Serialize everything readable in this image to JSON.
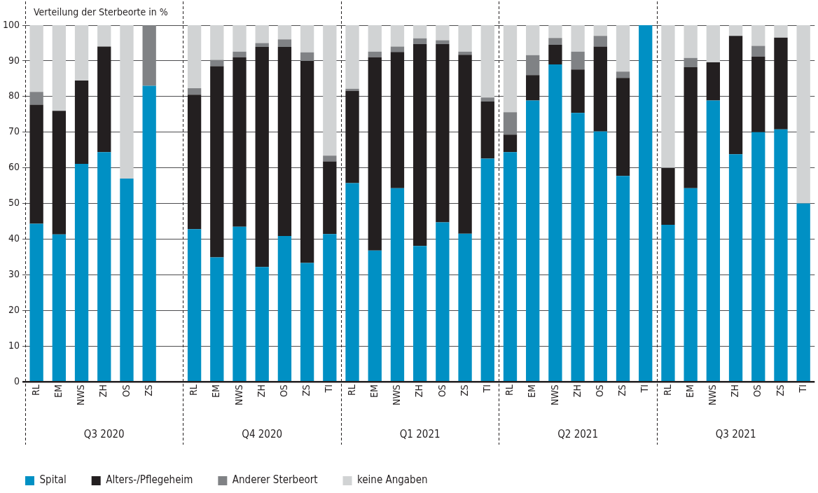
{
  "chart_data": {
    "type": "bar",
    "stacked": true,
    "ylabel": "Verteilung der Sterbeorte in %",
    "categories": [
      "RL",
      "EM",
      "NWS",
      "ZH",
      "OS",
      "ZS",
      null,
      "RL",
      "EM",
      "NWS",
      "ZH",
      "OS",
      "ZS",
      "TI",
      "RL",
      "EM",
      "NWS",
      "ZH",
      "OS",
      "ZS",
      "TI",
      "RL",
      "EM",
      "NWS",
      "ZH",
      "OS",
      "ZS",
      "TI",
      "RL",
      "EM",
      "NWS",
      "ZH",
      "OS",
      "ZS",
      "TI"
    ],
    "series": [
      {
        "name": "Spital",
        "color": "#0090c4",
        "values": [
          44.3,
          41.3,
          61.1,
          64.4,
          57,
          83,
          null,
          42.8,
          34.9,
          43.5,
          32.2,
          40.9,
          33.3,
          41.4,
          55.7,
          36.8,
          54.3,
          38.1,
          44.7,
          41.5,
          62.6,
          64.4,
          78.9,
          89,
          75.4,
          70.2,
          57.7,
          100,
          44,
          54.3,
          78.9,
          63.8,
          70,
          70.8,
          50
        ]
      },
      {
        "name": "Alters-/Pflegeheim",
        "color": "#231f20",
        "values": [
          33.4,
          34.7,
          23.4,
          29.6,
          0,
          0,
          null,
          37.7,
          53.6,
          47.5,
          61.7,
          53,
          56.7,
          20.4,
          25.9,
          54.2,
          38.2,
          56.6,
          50,
          50.2,
          16,
          4.9,
          7.1,
          5.5,
          12.2,
          23.8,
          27.5,
          0,
          16,
          33.9,
          10.7,
          33.2,
          21.2,
          25.7,
          0
        ]
      },
      {
        "name": "Anderer Sterbeort",
        "color": "#808285",
        "values": [
          3.6,
          0,
          0,
          0,
          0,
          17,
          null,
          1.8,
          1.8,
          1.6,
          1.1,
          2.1,
          2.4,
          1.6,
          0.6,
          1.6,
          1.5,
          1.6,
          1.1,
          0.9,
          1.1,
          6.3,
          5.6,
          1.9,
          5,
          3,
          1.8,
          0,
          0,
          2.6,
          0,
          0,
          3,
          0,
          0
        ]
      },
      {
        "name": "keine Angaben",
        "color": "#d1d3d4",
        "values": [
          18.7,
          24,
          15.5,
          6,
          43,
          0,
          null,
          17.7,
          9.7,
          7.4,
          5,
          4,
          7.6,
          36.6,
          17.8,
          7.4,
          6,
          3.7,
          4.2,
          7.4,
          20.3,
          24.4,
          8.4,
          3.6,
          7.4,
          3,
          13,
          0,
          40,
          9.2,
          10.4,
          3,
          5.8,
          3.5,
          50
        ]
      }
    ],
    "annotations": [
      "Q3 2020",
      "Q4 2020",
      "Q1 2021",
      "Q2 2021",
      "Q3 2021"
    ],
    "ylim": [
      0,
      100
    ],
    "yticks": [
      0,
      10,
      20,
      30,
      40,
      50,
      60,
      70,
      80,
      90,
      100
    ],
    "grid": "y",
    "legend": "bottom left"
  }
}
